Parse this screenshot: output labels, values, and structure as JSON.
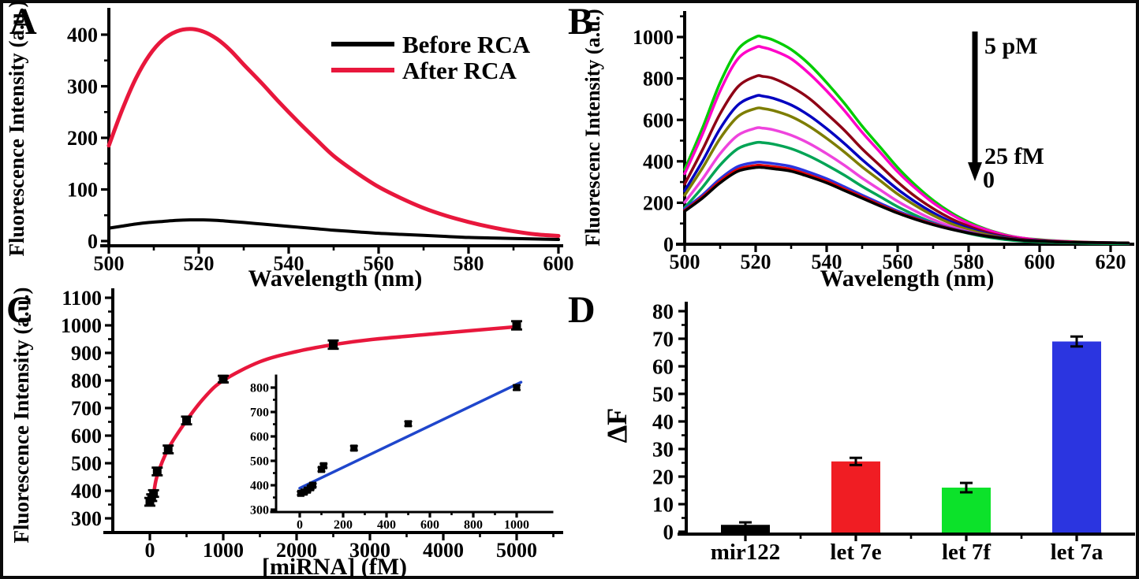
{
  "figure": {
    "background": "#ffffff",
    "border_color": "#0a0a0a"
  },
  "chart_data": [
    {
      "id": "A",
      "label": "A",
      "type": "line",
      "xlabel": "Wavelength (nm)",
      "ylabel": "Fluorescence Intensity (a.u.)",
      "x_range": [
        500,
        600
      ],
      "y_range": [
        0,
        450
      ],
      "grid": false,
      "x_ticks": [
        500,
        520,
        540,
        560,
        580,
        600
      ],
      "x_minor_ticks": [
        510,
        530,
        550,
        570,
        590
      ],
      "y_ticks": [
        0,
        100,
        200,
        300,
        400
      ],
      "y_minor_ticks": [
        50,
        150,
        250,
        350
      ],
      "legend": {
        "position": "top-right",
        "entries": [
          {
            "label": "Before RCA",
            "color": "#000000"
          },
          {
            "label": "After RCA",
            "color": "#e8173c"
          }
        ]
      },
      "series": [
        {
          "name": "After RCA",
          "color": "#e8173c",
          "width": 5,
          "x": [
            500,
            503,
            506,
            509,
            512,
            515,
            518,
            521,
            524,
            527,
            530,
            534,
            538,
            542,
            546,
            550,
            555,
            560,
            565,
            570,
            575,
            580,
            585,
            590,
            595,
            600
          ],
          "y": [
            185,
            255,
            315,
            360,
            390,
            406,
            411,
            406,
            392,
            370,
            342,
            306,
            268,
            232,
            198,
            165,
            133,
            105,
            83,
            64,
            49,
            37,
            27,
            19,
            13,
            10
          ]
        },
        {
          "name": "Before RCA",
          "color": "#000000",
          "width": 4,
          "x": [
            500,
            503,
            506,
            509,
            512,
            515,
            518,
            521,
            524,
            527,
            530,
            534,
            538,
            542,
            546,
            550,
            555,
            560,
            565,
            570,
            575,
            580,
            585,
            590,
            595,
            600
          ],
          "y": [
            25,
            29,
            33,
            36,
            38,
            40,
            41,
            41,
            40,
            38,
            36,
            33,
            30,
            27,
            24,
            21,
            18,
            15,
            13,
            11,
            9,
            7,
            6,
            5,
            4,
            3
          ]
        }
      ]
    },
    {
      "id": "B",
      "label": "B",
      "type": "line",
      "xlabel": "Wavelength (nm)",
      "ylabel": "Fluorescenc Intensity (a.u.)",
      "x_range": [
        500,
        625
      ],
      "y_range": [
        0,
        1100
      ],
      "grid": false,
      "x_ticks": [
        500,
        520,
        540,
        560,
        580,
        600,
        620
      ],
      "x_minor_ticks": [
        510,
        530,
        550,
        570,
        590,
        610
      ],
      "y_ticks": [
        0,
        200,
        400,
        600,
        800,
        1000
      ],
      "y_minor_ticks": [
        100,
        300,
        500,
        700,
        900,
        1100
      ],
      "annotation_arrow": {
        "direction": "down",
        "top_label": "5 pM",
        "mid_label": "25 fM",
        "bottom_label": "0"
      },
      "series_x": [
        500,
        505,
        510,
        515,
        520,
        522,
        525,
        530,
        535,
        540,
        545,
        550,
        555,
        560,
        565,
        570,
        575,
        580,
        585,
        590,
        595,
        600,
        605,
        610,
        615,
        620,
        625
      ],
      "series": [
        {
          "peak": 1000,
          "color": "#00cc00",
          "y": [
            360,
            560,
            780,
            940,
            1000,
            1000,
            985,
            940,
            870,
            780,
            680,
            570,
            470,
            370,
            285,
            212,
            153,
            107,
            72,
            47,
            30,
            22,
            16,
            12,
            9,
            7,
            6
          ]
        },
        {
          "peak": 950,
          "color": "#ff00c8",
          "y": [
            340,
            530,
            740,
            895,
            950,
            950,
            935,
            895,
            825,
            740,
            645,
            540,
            445,
            350,
            270,
            200,
            145,
            100,
            70,
            45,
            30,
            20,
            15,
            11,
            9,
            7,
            6
          ]
        },
        {
          "peak": 810,
          "color": "#8e0015",
          "y": [
            290,
            455,
            630,
            760,
            810,
            810,
            800,
            760,
            705,
            630,
            550,
            460,
            380,
            300,
            230,
            172,
            124,
            87,
            58,
            38,
            24,
            18,
            13,
            10,
            8,
            6,
            5
          ]
        },
        {
          "peak": 715,
          "color": "#0000c0",
          "y": [
            257,
            400,
            558,
            672,
            715,
            715,
            704,
            672,
            622,
            558,
            486,
            408,
            336,
            265,
            204,
            152,
            109,
            77,
            51,
            34,
            21,
            16,
            12,
            9,
            7,
            5,
            4
          ]
        },
        {
          "peak": 655,
          "color": "#7d7d00",
          "y": [
            236,
            367,
            511,
            616,
            655,
            655,
            645,
            616,
            570,
            511,
            445,
            373,
            308,
            242,
            187,
            139,
            100,
            70,
            47,
            31,
            20,
            14,
            10,
            8,
            6,
            5,
            4
          ]
        },
        {
          "peak": 560,
          "color": "#ee44dd",
          "y": [
            202,
            314,
            437,
            526,
            560,
            560,
            552,
            526,
            487,
            437,
            381,
            319,
            263,
            207,
            160,
            119,
            86,
            60,
            40,
            26,
            17,
            12,
            9,
            7,
            5,
            4,
            3
          ]
        },
        {
          "peak": 490,
          "color": "#00a455",
          "y": [
            176,
            274,
            382,
            461,
            490,
            490,
            483,
            461,
            426,
            382,
            333,
            279,
            230,
            181,
            140,
            104,
            75,
            52,
            35,
            23,
            15,
            11,
            8,
            6,
            4,
            3,
            3
          ]
        },
        {
          "peak": 395,
          "color": "#2b35e0",
          "y": [
            170,
            237,
            316,
            375,
            395,
            395,
            389,
            375,
            348,
            316,
            277,
            237,
            198,
            160,
            128,
            101,
            77,
            57,
            41,
            30,
            21,
            16,
            12,
            10,
            8,
            7,
            6
          ]
        },
        {
          "peak": 380,
          "color": "#e00000",
          "y": [
            163,
            228,
            304,
            361,
            380,
            380,
            374,
            361,
            334,
            304,
            266,
            228,
            190,
            154,
            124,
            97,
            74,
            55,
            40,
            29,
            20,
            15,
            12,
            10,
            8,
            7,
            6
          ]
        },
        {
          "peak": 370,
          "color": "#000000",
          "y": [
            159,
            222,
            296,
            352,
            370,
            370,
            364,
            352,
            326,
            296,
            259,
            222,
            185,
            150,
            120,
            94,
            72,
            54,
            39,
            28,
            19,
            15,
            11,
            9,
            8,
            7,
            6
          ]
        }
      ]
    },
    {
      "id": "C",
      "label": "C",
      "type": "scatter",
      "xlabel": "[miRNA] (fM)",
      "ylabel": "Fluorescence Intensity (a.u.)",
      "x_range": [
        0,
        5500
      ],
      "y_range": [
        300,
        1100
      ],
      "grid": false,
      "x_ticks": [
        0,
        1000,
        2000,
        3000,
        4000,
        5000
      ],
      "x_minor_ticks": [
        500,
        1500,
        2500,
        3500,
        4500,
        5500
      ],
      "y_ticks": [
        300,
        400,
        500,
        600,
        700,
        800,
        900,
        1000,
        1100
      ],
      "y_minor_ticks": [
        350,
        450,
        550,
        650,
        750,
        850,
        950,
        1050
      ],
      "points": {
        "x": [
          0,
          25,
          50,
          100,
          250,
          500,
          1000,
          2500,
          5000
        ],
        "y": [
          360,
          375,
          390,
          470,
          550,
          655,
          805,
          930,
          1000
        ],
        "err": [
          14,
          12,
          12,
          14,
          14,
          14,
          12,
          15,
          15
        ]
      },
      "fit_curve": {
        "color": "#e8173c",
        "x": [
          0,
          50,
          100,
          250,
          500,
          750,
          1000,
          1500,
          2000,
          2500,
          3000,
          4000,
          5000
        ],
        "y": [
          352,
          390,
          455,
          552,
          655,
          740,
          800,
          868,
          905,
          930,
          948,
          972,
          995
        ]
      },
      "inset": {
        "x_range": [
          0,
          1100
        ],
        "y_range": [
          300,
          820
        ],
        "x_ticks": [
          0,
          200,
          400,
          600,
          800,
          1000
        ],
        "x_minor_ticks": [
          100,
          300,
          500,
          700,
          900
        ],
        "y_ticks": [
          300,
          400,
          500,
          600,
          700,
          800
        ],
        "y_minor_ticks": [
          350,
          450,
          550,
          650,
          750
        ],
        "points": {
          "x": [
            5,
            20,
            35,
            50,
            60,
            100,
            110,
            250,
            500,
            1000
          ],
          "y": [
            367,
            372,
            380,
            390,
            400,
            465,
            480,
            552,
            652,
            800
          ],
          "err": [
            7,
            7,
            7,
            7,
            7,
            8,
            8,
            9,
            9,
            10
          ]
        },
        "fit_line": {
          "color": "#1f46cc",
          "x": [
            0,
            1020
          ],
          "y": [
            388,
            822
          ]
        }
      }
    },
    {
      "id": "D",
      "label": "D",
      "type": "bar",
      "xlabel": "",
      "ylabel": "ΔF",
      "y_range": [
        0,
        80
      ],
      "grid": false,
      "y_ticks": [
        0,
        10,
        20,
        30,
        40,
        50,
        60,
        70,
        80
      ],
      "y_minor_ticks": [
        5,
        15,
        25,
        35,
        45,
        55,
        65,
        75
      ],
      "categories": [
        "mir122",
        "let 7e",
        "let 7f",
        "let 7a"
      ],
      "values": [
        2.5,
        25.5,
        16,
        69
      ],
      "errors": [
        0.9,
        1.3,
        1.7,
        1.8
      ],
      "colors": [
        "#000000",
        "#f01d23",
        "#0ce22a",
        "#2b35e0"
      ]
    }
  ]
}
